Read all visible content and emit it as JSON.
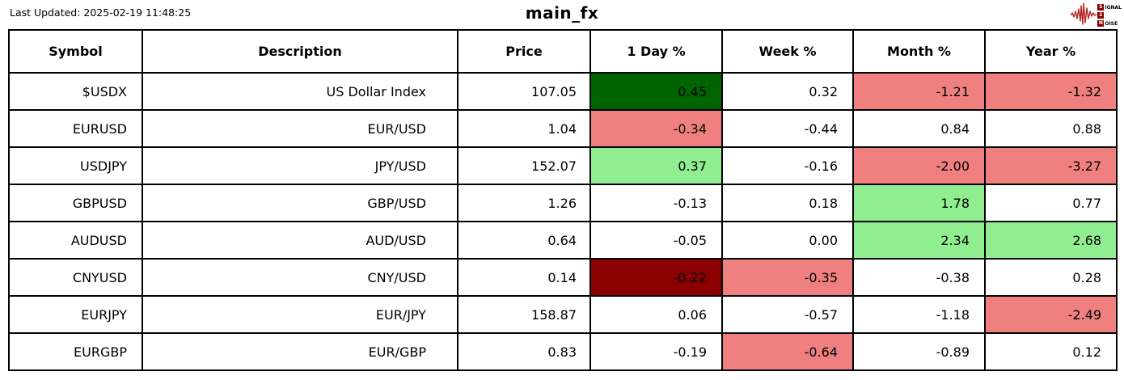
{
  "meta": {
    "last_updated": "Last Updated: 2025-02-19 11:48:25",
    "title": "main_fx"
  },
  "logo": {
    "line1_initial": "S",
    "line1_rest": "IGNAL",
    "line2_initial": "2",
    "line2_rest": "",
    "line3_initial": "N",
    "line3_rest": "OISE",
    "waveform_color": "#B22222",
    "box_color": "#8B0000"
  },
  "colors": {
    "strong_up": "#006400",
    "up": "#90EE90",
    "down": "#F08080",
    "strong_down": "#8B0000",
    "neutral": "#FFFFFF"
  },
  "table": {
    "headers": [
      "Symbol",
      "Description",
      "Price",
      "1 Day %",
      "Week %",
      "Month %",
      "Year %"
    ],
    "rows": [
      {
        "symbol": "$USDX",
        "description": "US Dollar Index",
        "price": "107.05",
        "pcts": [
          {
            "v": "0.45",
            "bg": "strong_up"
          },
          {
            "v": "0.32",
            "bg": "neutral"
          },
          {
            "v": "-1.21",
            "bg": "down"
          },
          {
            "v": "-1.32",
            "bg": "down"
          }
        ]
      },
      {
        "symbol": "EURUSD",
        "description": "EUR/USD",
        "price": "1.04",
        "pcts": [
          {
            "v": "-0.34",
            "bg": "down"
          },
          {
            "v": "-0.44",
            "bg": "neutral"
          },
          {
            "v": "0.84",
            "bg": "neutral"
          },
          {
            "v": "0.88",
            "bg": "neutral"
          }
        ]
      },
      {
        "symbol": "USDJPY",
        "description": "JPY/USD",
        "price": "152.07",
        "pcts": [
          {
            "v": "0.37",
            "bg": "up"
          },
          {
            "v": "-0.16",
            "bg": "neutral"
          },
          {
            "v": "-2.00",
            "bg": "down"
          },
          {
            "v": "-3.27",
            "bg": "down"
          }
        ]
      },
      {
        "symbol": "GBPUSD",
        "description": "GBP/USD",
        "price": "1.26",
        "pcts": [
          {
            "v": "-0.13",
            "bg": "neutral"
          },
          {
            "v": "0.18",
            "bg": "neutral"
          },
          {
            "v": "1.78",
            "bg": "up"
          },
          {
            "v": "0.77",
            "bg": "neutral"
          }
        ]
      },
      {
        "symbol": "AUDUSD",
        "description": "AUD/USD",
        "price": "0.64",
        "pcts": [
          {
            "v": "-0.05",
            "bg": "neutral"
          },
          {
            "v": "0.00",
            "bg": "neutral"
          },
          {
            "v": "2.34",
            "bg": "up"
          },
          {
            "v": "2.68",
            "bg": "up"
          }
        ]
      },
      {
        "symbol": "CNYUSD",
        "description": "CNY/USD",
        "price": "0.14",
        "pcts": [
          {
            "v": "-0.22",
            "bg": "strong_down"
          },
          {
            "v": "-0.35",
            "bg": "down"
          },
          {
            "v": "-0.38",
            "bg": "neutral"
          },
          {
            "v": "0.28",
            "bg": "neutral"
          }
        ]
      },
      {
        "symbol": "EURJPY",
        "description": "EUR/JPY",
        "price": "158.87",
        "pcts": [
          {
            "v": "0.06",
            "bg": "neutral"
          },
          {
            "v": "-0.57",
            "bg": "neutral"
          },
          {
            "v": "-1.18",
            "bg": "neutral"
          },
          {
            "v": "-2.49",
            "bg": "down"
          }
        ]
      },
      {
        "symbol": "EURGBP",
        "description": "EUR/GBP",
        "price": "0.83",
        "pcts": [
          {
            "v": "-0.19",
            "bg": "neutral"
          },
          {
            "v": "-0.64",
            "bg": "down"
          },
          {
            "v": "-0.89",
            "bg": "neutral"
          },
          {
            "v": "0.12",
            "bg": "neutral"
          }
        ]
      }
    ]
  },
  "chart_data": {
    "type": "table",
    "title": "main_fx",
    "annotation": "Last Updated: 2025-02-19 11:48:25",
    "columns": [
      "Symbol",
      "Description",
      "Price",
      "1 Day %",
      "Week %",
      "Month %",
      "Year %"
    ],
    "rows": [
      [
        "$USDX",
        "US Dollar Index",
        107.05,
        0.45,
        0.32,
        -1.21,
        -1.32
      ],
      [
        "EURUSD",
        "EUR/USD",
        1.04,
        -0.34,
        -0.44,
        0.84,
        0.88
      ],
      [
        "USDJPY",
        "JPY/USD",
        152.07,
        0.37,
        -0.16,
        -2.0,
        -3.27
      ],
      [
        "GBPUSD",
        "GBP/USD",
        1.26,
        -0.13,
        0.18,
        1.78,
        0.77
      ],
      [
        "AUDUSD",
        "AUD/USD",
        0.64,
        -0.05,
        0.0,
        2.34,
        2.68
      ],
      [
        "CNYUSD",
        "CNY/USD",
        0.14,
        -0.22,
        -0.35,
        -0.38,
        0.28
      ],
      [
        "EURJPY",
        "EUR/JPY",
        158.87,
        0.06,
        -0.57,
        -1.18,
        -2.49
      ],
      [
        "EURGBP",
        "EUR/GBP",
        0.83,
        -0.19,
        -0.64,
        -0.89,
        0.12
      ]
    ],
    "cell_highlight_colors": {
      "strong_up": "#006400",
      "up": "#90EE90",
      "down": "#F08080",
      "strong_down": "#8B0000",
      "neutral": "#FFFFFF"
    }
  }
}
